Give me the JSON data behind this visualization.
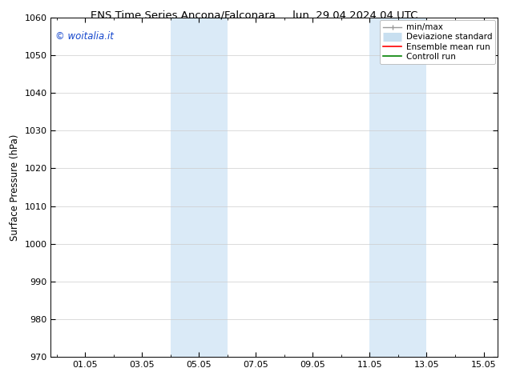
{
  "title_left": "ENS Time Series Ancona/Falconara",
  "title_right": "lun. 29.04.2024 04 UTC",
  "ylabel": "Surface Pressure (hPa)",
  "ylim": [
    970,
    1060
  ],
  "yticks": [
    970,
    980,
    990,
    1000,
    1010,
    1020,
    1030,
    1040,
    1050,
    1060
  ],
  "xtick_labels": [
    "01.05",
    "03.05",
    "05.05",
    "07.05",
    "09.05",
    "11.05",
    "13.05",
    "15.05"
  ],
  "xtick_positions": [
    1,
    3,
    5,
    7,
    9,
    11,
    13,
    15
  ],
  "xlim": [
    -0.2,
    15.5
  ],
  "shaded_regions": [
    {
      "xmin": 4.0,
      "xmax": 6.0
    },
    {
      "xmin": 11.0,
      "xmax": 13.0
    }
  ],
  "shade_color": "#daeaf7",
  "watermark_text": "© woitalia.it",
  "watermark_color": "#1144cc",
  "bg_color": "#ffffff",
  "grid_color": "#cccccc",
  "title_fontsize": 9.5,
  "tick_fontsize": 8,
  "legend_fontsize": 7.5,
  "ylabel_fontsize": 8.5
}
